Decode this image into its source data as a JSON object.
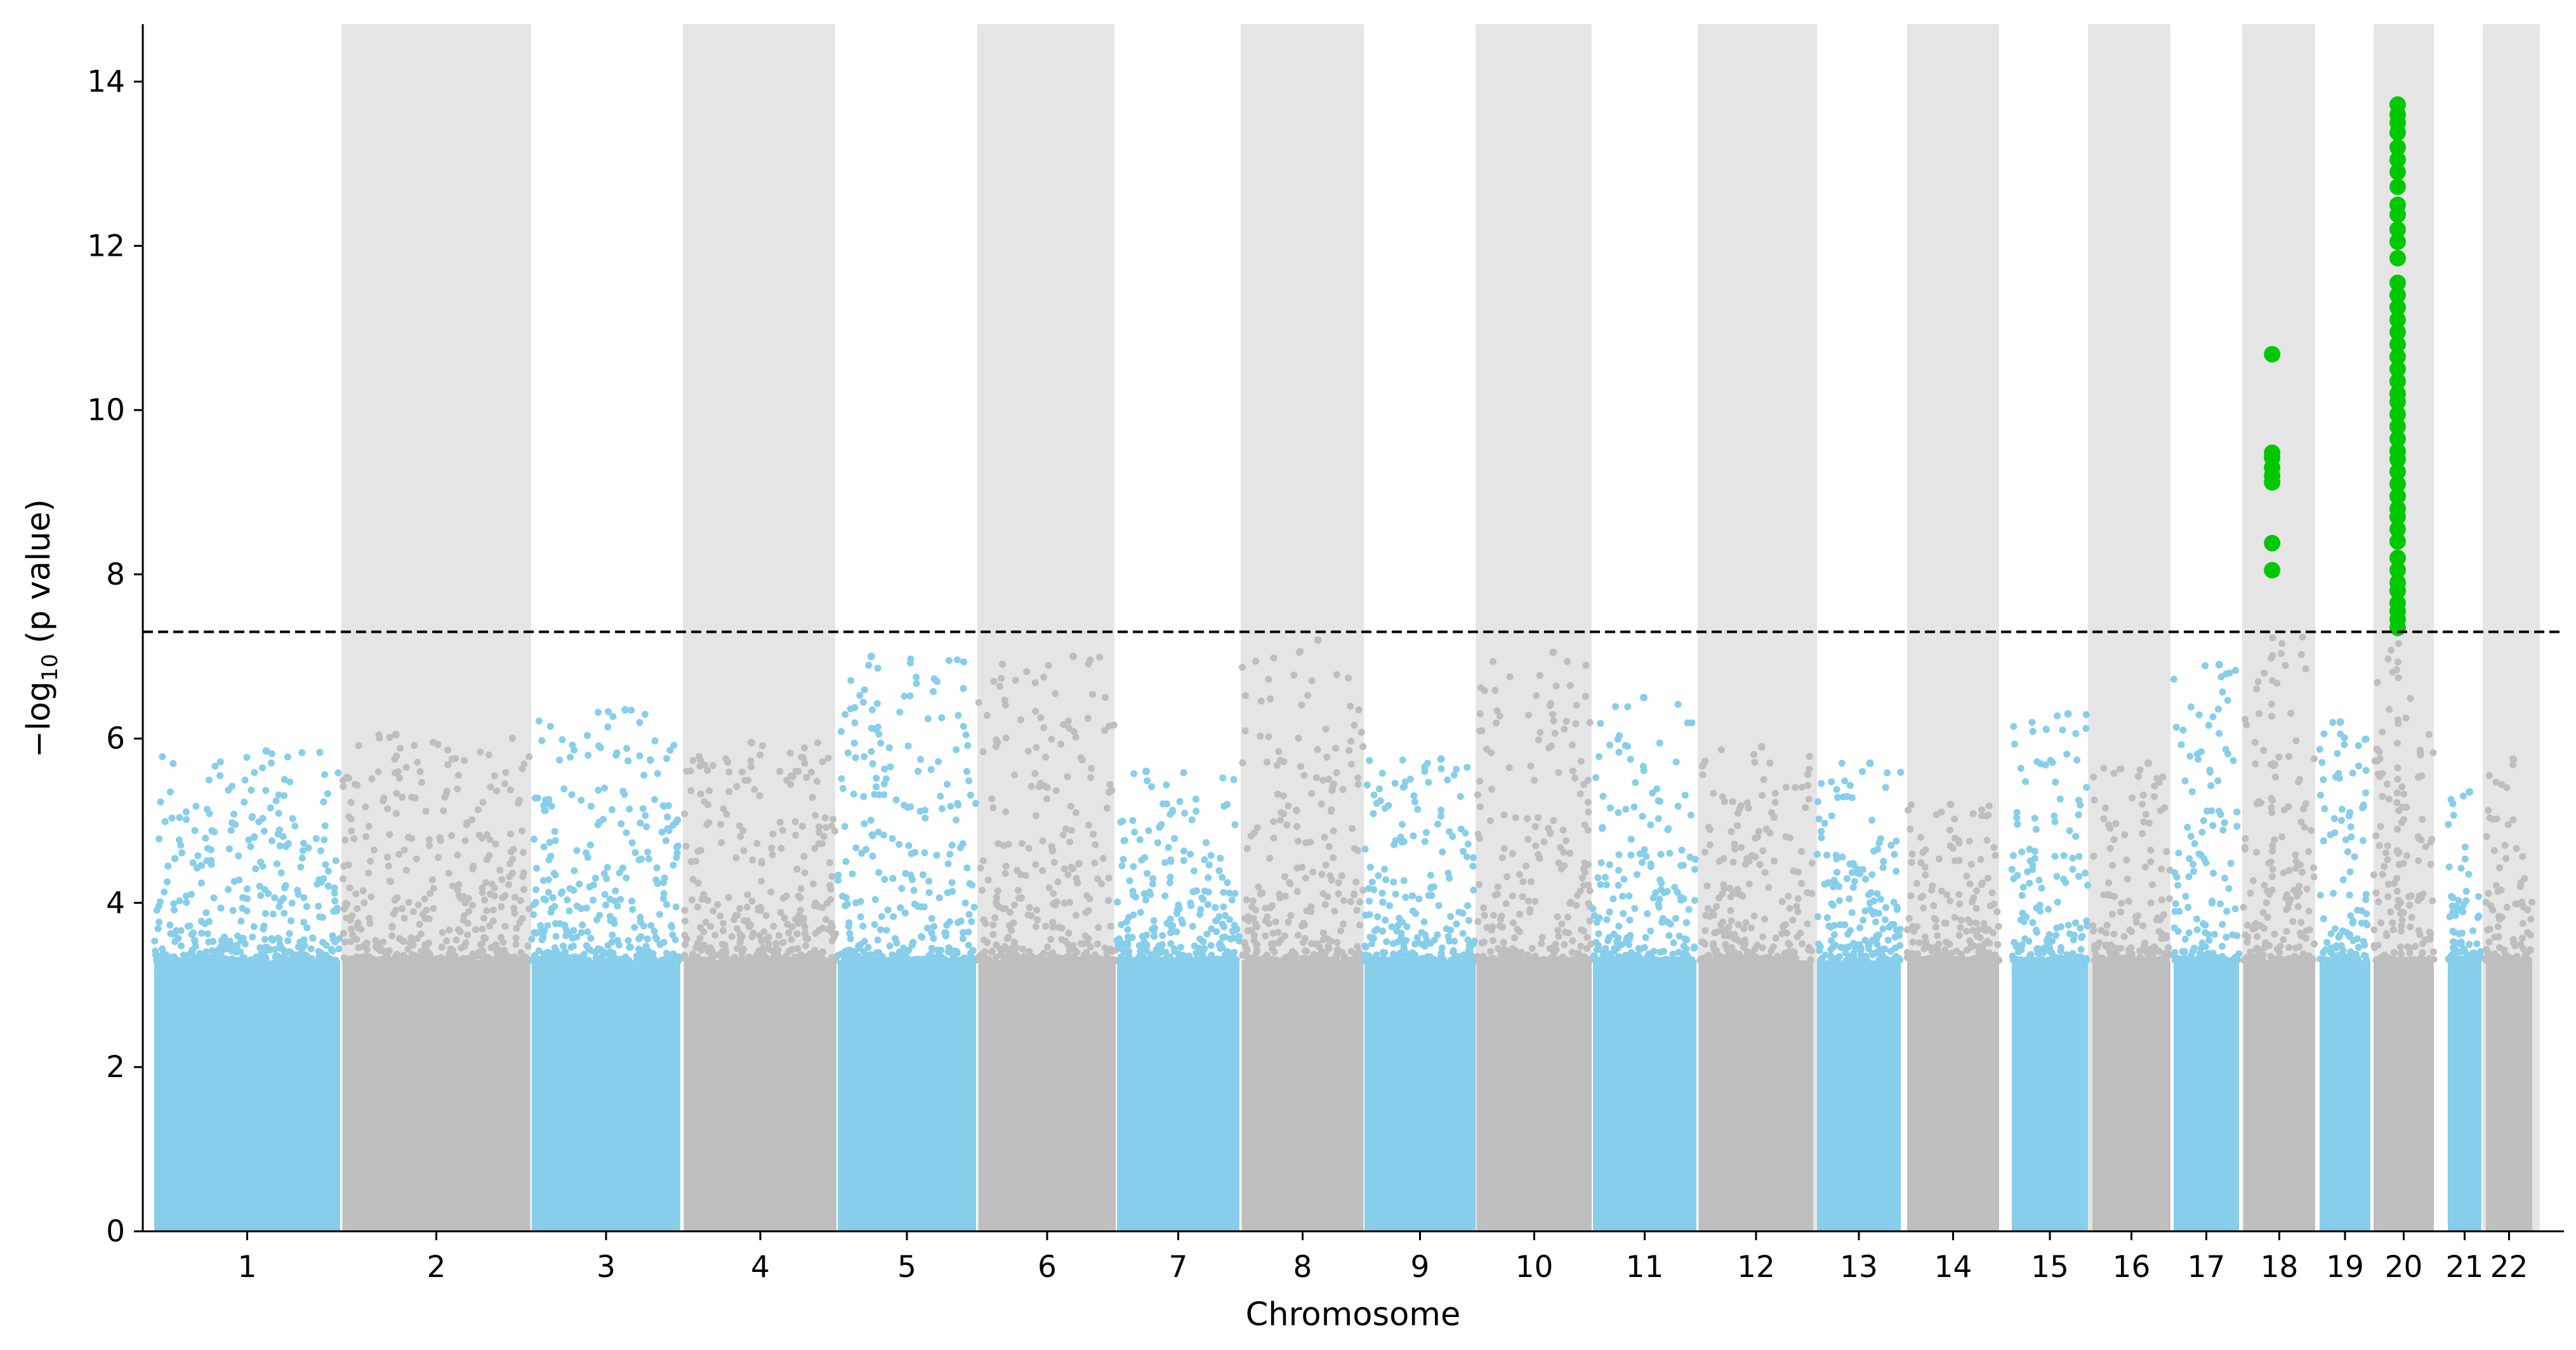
{
  "chart_data": {
    "type": "scatter",
    "subtype": "manhattan",
    "xlabel": "Chromosome",
    "ylabel": "−log",
    "ylabel_subscript": "10",
    "ylabel_suffix": " (p value)",
    "ylim": [
      0,
      14.7
    ],
    "yticks": [
      0,
      2,
      4,
      6,
      8,
      10,
      12,
      14
    ],
    "grid": false,
    "significance_threshold": 7.3,
    "threshold_line_style": "dashed",
    "colors": {
      "odd_chromosome": "#87ceeb",
      "even_chromosome": "#bebebe",
      "significant": "#00c800",
      "band": "#e5e5e5",
      "threshold": "#000000"
    },
    "chromosomes": [
      {
        "label": "1",
        "peak": 5.85
      },
      {
        "label": "2",
        "peak": 6.05
      },
      {
        "label": "3",
        "peak": 6.35
      },
      {
        "label": "4",
        "peak": 5.95
      },
      {
        "label": "5",
        "peak": 7.0
      },
      {
        "label": "6",
        "peak": 7.0
      },
      {
        "label": "7",
        "peak": 5.6
      },
      {
        "label": "8",
        "peak": 7.2
      },
      {
        "label": "9",
        "peak": 5.75
      },
      {
        "label": "10",
        "peak": 7.05
      },
      {
        "label": "11",
        "peak": 6.5
      },
      {
        "label": "12",
        "peak": 5.9
      },
      {
        "label": "13",
        "peak": 5.7
      },
      {
        "label": "14",
        "peak": 5.2
      },
      {
        "label": "15",
        "peak": 6.3
      },
      {
        "label": "16",
        "peak": 5.7
      },
      {
        "label": "17",
        "peak": 6.9
      },
      {
        "label": "18",
        "peak": 10.7
      },
      {
        "label": "19",
        "peak": 6.2
      },
      {
        "label": "20",
        "peak": 13.75
      },
      {
        "label": "21",
        "peak": 5.35
      },
      {
        "label": "22",
        "peak": 5.75
      }
    ],
    "significant_points": [
      {
        "chromosome": "18",
        "values": [
          10.68,
          9.48,
          9.42,
          9.3,
          9.2,
          9.12,
          8.38,
          8.05
        ]
      },
      {
        "chromosome": "20",
        "values": [
          13.72,
          13.6,
          13.5,
          13.38,
          13.2,
          13.05,
          12.9,
          12.72,
          12.5,
          12.38,
          12.2,
          12.05,
          11.85,
          11.55,
          11.4,
          11.25,
          11.1,
          10.95,
          10.8,
          10.65,
          10.5,
          10.35,
          10.2,
          10.1,
          9.95,
          9.8,
          9.65,
          9.5,
          9.4,
          9.25,
          9.1,
          8.95,
          8.8,
          8.7,
          8.55,
          8.4,
          8.2,
          8.05,
          7.9,
          7.8,
          7.65,
          7.55,
          7.45,
          7.35
        ]
      }
    ]
  }
}
